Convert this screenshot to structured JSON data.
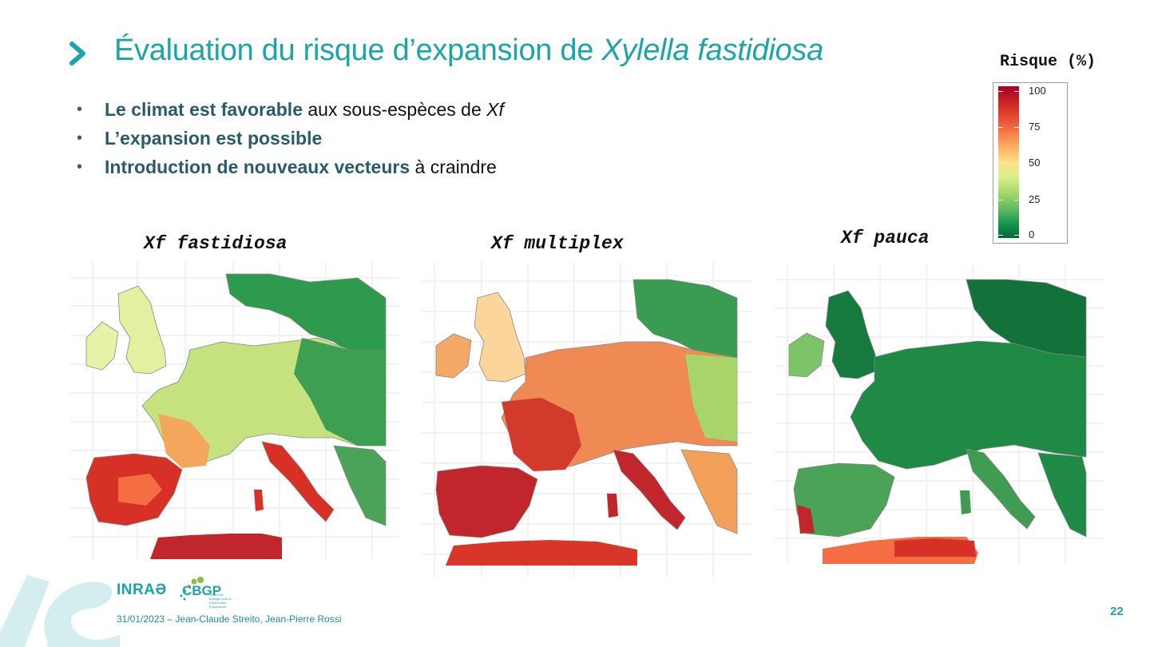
{
  "slide": {
    "title_plain": "Évaluation du risque d’expansion de ",
    "title_italic": "Xylella fastidiosa",
    "page_number": "22",
    "footer": "31/01/2023 – Jean-Claude Streito, Jean-Pierre Rossi"
  },
  "bullets": [
    {
      "bold": "Le climat est favorable",
      "rest": " aux sous-espèces de ",
      "italic": "Xf"
    },
    {
      "bold": "L’expansion est possible",
      "rest": "",
      "italic": ""
    },
    {
      "bold": "Introduction de nouveaux vecteurs",
      "rest": " à craindre",
      "italic": ""
    }
  ],
  "maps": [
    {
      "title": "Xf fastidiosa"
    },
    {
      "title": "Xf multiplex"
    },
    {
      "title": "Xf pauca"
    }
  ],
  "legend": {
    "title": "Risque (%)",
    "ticks": [
      "100",
      "75",
      "50",
      "25",
      "0"
    ],
    "colors": [
      "#a50026",
      "#d73027",
      "#f46d43",
      "#fdae61",
      "#fee08b",
      "#d9ef8b",
      "#a6d96a",
      "#66bd63",
      "#1a9850",
      "#006837"
    ]
  },
  "logos": {
    "inrae": "INRAƏ",
    "cbgp": "CBGP",
    "cbgp_sub": "Centre de Biologie pour la Gestion des Populations"
  },
  "colors": {
    "accent": "#1aa6a6",
    "bullet_bold": "#275c6a"
  }
}
